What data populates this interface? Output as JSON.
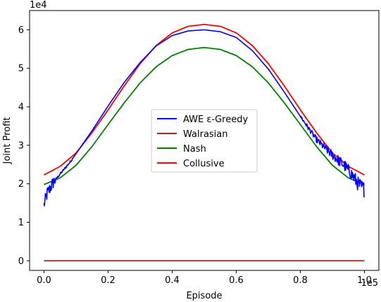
{
  "chart_data": {
    "type": "line",
    "title": "",
    "xlabel": "Episode",
    "ylabel": "Joint Profit",
    "x_multiplier_label": "1e5",
    "y_multiplier_label": "1e4",
    "xlim": [
      -4500,
      104500
    ],
    "ylim": [
      -2500,
      65000
    ],
    "x_ticks": [
      0,
      20000,
      40000,
      60000,
      80000,
      100000
    ],
    "x_tick_labels": [
      "0.0",
      "0.2",
      "0.4",
      "0.6",
      "0.8",
      "1.0"
    ],
    "y_ticks": [
      0,
      10000,
      20000,
      30000,
      40000,
      50000,
      60000
    ],
    "y_tick_labels": [
      "0",
      "1",
      "2",
      "3",
      "4",
      "5",
      "6"
    ],
    "grid": false,
    "legend_position": "center",
    "series": [
      {
        "name": "AWE ε-Greedy",
        "color": "#0000ff",
        "noisy": true,
        "x": [
          0,
          1000,
          2000,
          3000,
          4000,
          6000,
          8000,
          10000,
          15000,
          20000,
          25000,
          30000,
          35000,
          40000,
          45000,
          50000,
          55000,
          60000,
          65000,
          70000,
          75000,
          80000,
          85000,
          88000,
          90000,
          92000,
          94000,
          96000,
          98000,
          100000
        ],
        "values": [
          14500,
          17500,
          19000,
          20500,
          21500,
          23500,
          25500,
          27800,
          33800,
          40200,
          46300,
          51500,
          55800,
          58500,
          59700,
          60000,
          59500,
          58000,
          54600,
          49800,
          43800,
          37500,
          31500,
          29000,
          27500,
          26000,
          24500,
          22500,
          20000,
          18500
        ]
      },
      {
        "name": "Walrasian",
        "color": "#b22222",
        "x": [
          0,
          100000
        ],
        "values": [
          0,
          0
        ]
      },
      {
        "name": "Nash",
        "color": "#008000",
        "x": [
          0,
          5000,
          10000,
          15000,
          20000,
          25000,
          30000,
          35000,
          40000,
          45000,
          50000,
          55000,
          60000,
          65000,
          70000,
          75000,
          80000,
          85000,
          90000,
          95000,
          100000
        ],
        "values": [
          19800,
          21500,
          24800,
          29700,
          35400,
          41000,
          46200,
          50400,
          53300,
          54900,
          55400,
          54900,
          53300,
          50400,
          46200,
          41000,
          35400,
          29700,
          24800,
          21500,
          19800
        ]
      },
      {
        "name": "Collusive",
        "color": "#ff0000",
        "x": [
          0,
          5000,
          10000,
          15000,
          20000,
          25000,
          30000,
          35000,
          40000,
          45000,
          50000,
          55000,
          60000,
          65000,
          70000,
          75000,
          80000,
          85000,
          90000,
          95000,
          100000
        ],
        "values": [
          22300,
          24500,
          28000,
          33300,
          39200,
          45400,
          51200,
          55900,
          59200,
          60900,
          61400,
          60900,
          59200,
          55900,
          51200,
          45400,
          39200,
          33300,
          28000,
          24500,
          22300
        ]
      }
    ]
  }
}
